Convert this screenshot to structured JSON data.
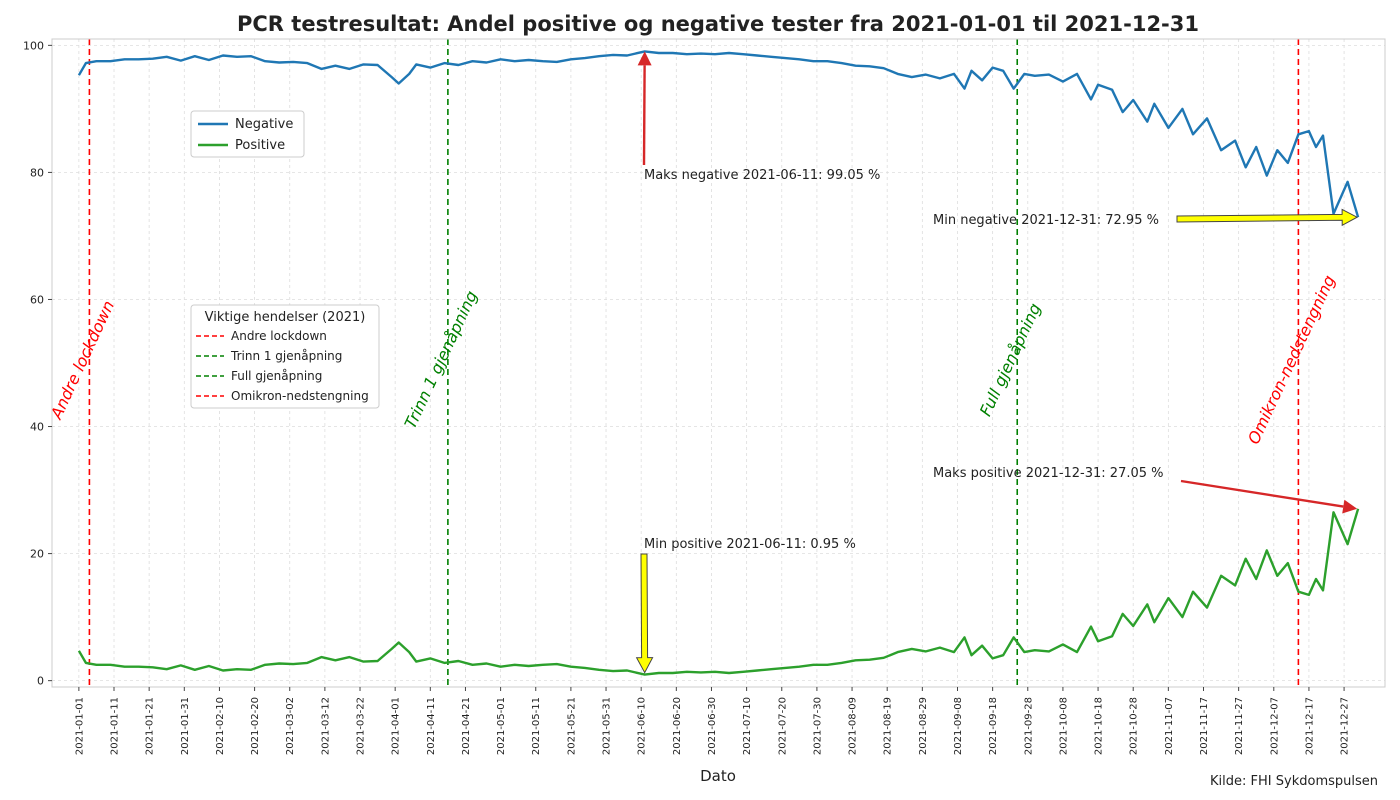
{
  "chart_data": {
    "type": "line",
    "title": "PCR testresultat: Andel positive og negative tester fra 2021-01-01 til 2021-12-31",
    "xlabel": "Dato",
    "ylabel": "",
    "ylim": [
      -1,
      101
    ],
    "yticks": [
      0,
      20,
      40,
      60,
      80,
      100
    ],
    "x_range": [
      "2021-01-01",
      "2021-12-31"
    ],
    "xticks": [
      "2021-01-01",
      "2021-01-11",
      "2021-01-21",
      "2021-01-31",
      "2021-02-10",
      "2021-02-20",
      "2021-03-02",
      "2021-03-12",
      "2021-03-22",
      "2021-04-01",
      "2021-04-11",
      "2021-04-21",
      "2021-05-01",
      "2021-05-11",
      "2021-05-21",
      "2021-05-31",
      "2021-06-10",
      "2021-06-20",
      "2021-06-30",
      "2021-07-10",
      "2021-07-20",
      "2021-07-30",
      "2021-08-09",
      "2021-08-19",
      "2021-08-29",
      "2021-09-08",
      "2021-09-18",
      "2021-09-28",
      "2021-10-08",
      "2021-10-18",
      "2021-10-28",
      "2021-11-07",
      "2021-11-17",
      "2021-11-27",
      "2021-12-07",
      "2021-12-17",
      "2021-12-27"
    ],
    "grid": true,
    "series": [
      {
        "name": "Negative",
        "color": "#1f77b4",
        "points": [
          [
            "2021-01-01",
            95.3
          ],
          [
            "2021-01-03",
            97.2
          ],
          [
            "2021-01-06",
            97.5
          ],
          [
            "2021-01-10",
            97.5
          ],
          [
            "2021-01-14",
            97.8
          ],
          [
            "2021-01-18",
            97.8
          ],
          [
            "2021-01-22",
            97.9
          ],
          [
            "2021-01-26",
            98.2
          ],
          [
            "2021-01-30",
            97.6
          ],
          [
            "2021-02-03",
            98.3
          ],
          [
            "2021-02-07",
            97.7
          ],
          [
            "2021-02-11",
            98.4
          ],
          [
            "2021-02-15",
            98.2
          ],
          [
            "2021-02-19",
            98.3
          ],
          [
            "2021-02-23",
            97.5
          ],
          [
            "2021-02-27",
            97.3
          ],
          [
            "2021-03-03",
            97.4
          ],
          [
            "2021-03-07",
            97.2
          ],
          [
            "2021-03-11",
            96.3
          ],
          [
            "2021-03-15",
            96.8
          ],
          [
            "2021-03-19",
            96.3
          ],
          [
            "2021-03-23",
            97.0
          ],
          [
            "2021-03-27",
            96.9
          ],
          [
            "2021-03-31",
            95.0
          ],
          [
            "2021-04-02",
            94.0
          ],
          [
            "2021-04-05",
            95.5
          ],
          [
            "2021-04-07",
            97.0
          ],
          [
            "2021-04-11",
            96.5
          ],
          [
            "2021-04-15",
            97.2
          ],
          [
            "2021-04-19",
            96.9
          ],
          [
            "2021-04-23",
            97.5
          ],
          [
            "2021-04-27",
            97.3
          ],
          [
            "2021-05-01",
            97.8
          ],
          [
            "2021-05-05",
            97.5
          ],
          [
            "2021-05-09",
            97.7
          ],
          [
            "2021-05-13",
            97.5
          ],
          [
            "2021-05-17",
            97.4
          ],
          [
            "2021-05-21",
            97.8
          ],
          [
            "2021-05-25",
            98.0
          ],
          [
            "2021-05-29",
            98.3
          ],
          [
            "2021-06-02",
            98.5
          ],
          [
            "2021-06-06",
            98.4
          ],
          [
            "2021-06-11",
            99.05
          ],
          [
            "2021-06-15",
            98.8
          ],
          [
            "2021-06-19",
            98.8
          ],
          [
            "2021-06-23",
            98.6
          ],
          [
            "2021-06-27",
            98.7
          ],
          [
            "2021-07-01",
            98.6
          ],
          [
            "2021-07-05",
            98.8
          ],
          [
            "2021-07-09",
            98.6
          ],
          [
            "2021-07-13",
            98.4
          ],
          [
            "2021-07-17",
            98.2
          ],
          [
            "2021-07-21",
            98.0
          ],
          [
            "2021-07-25",
            97.8
          ],
          [
            "2021-07-29",
            97.5
          ],
          [
            "2021-08-02",
            97.5
          ],
          [
            "2021-08-06",
            97.2
          ],
          [
            "2021-08-10",
            96.8
          ],
          [
            "2021-08-14",
            96.7
          ],
          [
            "2021-08-18",
            96.4
          ],
          [
            "2021-08-22",
            95.5
          ],
          [
            "2021-08-26",
            95.0
          ],
          [
            "2021-08-30",
            95.4
          ],
          [
            "2021-09-03",
            94.8
          ],
          [
            "2021-09-07",
            95.5
          ],
          [
            "2021-09-10",
            93.2
          ],
          [
            "2021-09-12",
            96.0
          ],
          [
            "2021-09-15",
            94.5
          ],
          [
            "2021-09-18",
            96.5
          ],
          [
            "2021-09-21",
            96.0
          ],
          [
            "2021-09-24",
            93.2
          ],
          [
            "2021-09-27",
            95.5
          ],
          [
            "2021-09-30",
            95.2
          ],
          [
            "2021-10-04",
            95.4
          ],
          [
            "2021-10-08",
            94.3
          ],
          [
            "2021-10-12",
            95.5
          ],
          [
            "2021-10-16",
            91.5
          ],
          [
            "2021-10-18",
            93.8
          ],
          [
            "2021-10-22",
            93.0
          ],
          [
            "2021-10-25",
            89.5
          ],
          [
            "2021-10-28",
            91.4
          ],
          [
            "2021-11-01",
            88.0
          ],
          [
            "2021-11-03",
            90.8
          ],
          [
            "2021-11-07",
            87.0
          ],
          [
            "2021-11-11",
            90.0
          ],
          [
            "2021-11-14",
            86.0
          ],
          [
            "2021-11-18",
            88.5
          ],
          [
            "2021-11-22",
            83.5
          ],
          [
            "2021-11-26",
            85.0
          ],
          [
            "2021-11-29",
            80.8
          ],
          [
            "2021-12-02",
            84.0
          ],
          [
            "2021-12-05",
            79.5
          ],
          [
            "2021-12-08",
            83.5
          ],
          [
            "2021-12-11",
            81.5
          ],
          [
            "2021-12-14",
            86.0
          ],
          [
            "2021-12-17",
            86.5
          ],
          [
            "2021-12-19",
            84.0
          ],
          [
            "2021-12-21",
            85.8
          ],
          [
            "2021-12-24",
            73.5
          ],
          [
            "2021-12-26",
            76.0
          ],
          [
            "2021-12-28",
            78.5
          ],
          [
            "2021-12-31",
            72.95
          ]
        ]
      },
      {
        "name": "Positive",
        "color": "#2ca02c",
        "points": [
          [
            "2021-01-01",
            4.7
          ],
          [
            "2021-01-03",
            2.8
          ],
          [
            "2021-01-06",
            2.5
          ],
          [
            "2021-01-10",
            2.5
          ],
          [
            "2021-01-14",
            2.2
          ],
          [
            "2021-01-18",
            2.2
          ],
          [
            "2021-01-22",
            2.1
          ],
          [
            "2021-01-26",
            1.8
          ],
          [
            "2021-01-30",
            2.4
          ],
          [
            "2021-02-03",
            1.7
          ],
          [
            "2021-02-07",
            2.3
          ],
          [
            "2021-02-11",
            1.6
          ],
          [
            "2021-02-15",
            1.8
          ],
          [
            "2021-02-19",
            1.7
          ],
          [
            "2021-02-23",
            2.5
          ],
          [
            "2021-02-27",
            2.7
          ],
          [
            "2021-03-03",
            2.6
          ],
          [
            "2021-03-07",
            2.8
          ],
          [
            "2021-03-11",
            3.7
          ],
          [
            "2021-03-15",
            3.2
          ],
          [
            "2021-03-19",
            3.7
          ],
          [
            "2021-03-23",
            3.0
          ],
          [
            "2021-03-27",
            3.1
          ],
          [
            "2021-03-31",
            5.0
          ],
          [
            "2021-04-02",
            6.0
          ],
          [
            "2021-04-05",
            4.5
          ],
          [
            "2021-04-07",
            3.0
          ],
          [
            "2021-04-11",
            3.5
          ],
          [
            "2021-04-15",
            2.8
          ],
          [
            "2021-04-19",
            3.1
          ],
          [
            "2021-04-23",
            2.5
          ],
          [
            "2021-04-27",
            2.7
          ],
          [
            "2021-05-01",
            2.2
          ],
          [
            "2021-05-05",
            2.5
          ],
          [
            "2021-05-09",
            2.3
          ],
          [
            "2021-05-13",
            2.5
          ],
          [
            "2021-05-17",
            2.6
          ],
          [
            "2021-05-21",
            2.2
          ],
          [
            "2021-05-25",
            2.0
          ],
          [
            "2021-05-29",
            1.7
          ],
          [
            "2021-06-02",
            1.5
          ],
          [
            "2021-06-06",
            1.6
          ],
          [
            "2021-06-11",
            0.95
          ],
          [
            "2021-06-15",
            1.2
          ],
          [
            "2021-06-19",
            1.2
          ],
          [
            "2021-06-23",
            1.4
          ],
          [
            "2021-06-27",
            1.3
          ],
          [
            "2021-07-01",
            1.4
          ],
          [
            "2021-07-05",
            1.2
          ],
          [
            "2021-07-09",
            1.4
          ],
          [
            "2021-07-13",
            1.6
          ],
          [
            "2021-07-17",
            1.8
          ],
          [
            "2021-07-21",
            2.0
          ],
          [
            "2021-07-25",
            2.2
          ],
          [
            "2021-07-29",
            2.5
          ],
          [
            "2021-08-02",
            2.5
          ],
          [
            "2021-08-06",
            2.8
          ],
          [
            "2021-08-10",
            3.2
          ],
          [
            "2021-08-14",
            3.3
          ],
          [
            "2021-08-18",
            3.6
          ],
          [
            "2021-08-22",
            4.5
          ],
          [
            "2021-08-26",
            5.0
          ],
          [
            "2021-08-30",
            4.6
          ],
          [
            "2021-09-03",
            5.2
          ],
          [
            "2021-09-07",
            4.5
          ],
          [
            "2021-09-10",
            6.8
          ],
          [
            "2021-09-12",
            4.0
          ],
          [
            "2021-09-15",
            5.5
          ],
          [
            "2021-09-18",
            3.5
          ],
          [
            "2021-09-21",
            4.0
          ],
          [
            "2021-09-24",
            6.8
          ],
          [
            "2021-09-27",
            4.5
          ],
          [
            "2021-09-30",
            4.8
          ],
          [
            "2021-10-04",
            4.6
          ],
          [
            "2021-10-08",
            5.7
          ],
          [
            "2021-10-12",
            4.5
          ],
          [
            "2021-10-16",
            8.5
          ],
          [
            "2021-10-18",
            6.2
          ],
          [
            "2021-10-22",
            7.0
          ],
          [
            "2021-10-25",
            10.5
          ],
          [
            "2021-10-28",
            8.6
          ],
          [
            "2021-11-01",
            12.0
          ],
          [
            "2021-11-03",
            9.2
          ],
          [
            "2021-11-07",
            13.0
          ],
          [
            "2021-11-11",
            10.0
          ],
          [
            "2021-11-14",
            14.0
          ],
          [
            "2021-11-18",
            11.5
          ],
          [
            "2021-11-22",
            16.5
          ],
          [
            "2021-11-26",
            15.0
          ],
          [
            "2021-11-29",
            19.2
          ],
          [
            "2021-12-02",
            16.0
          ],
          [
            "2021-12-05",
            20.5
          ],
          [
            "2021-12-08",
            16.5
          ],
          [
            "2021-12-11",
            18.5
          ],
          [
            "2021-12-14",
            14.0
          ],
          [
            "2021-12-17",
            13.5
          ],
          [
            "2021-12-19",
            16.0
          ],
          [
            "2021-12-21",
            14.2
          ],
          [
            "2021-12-24",
            26.5
          ],
          [
            "2021-12-26",
            24.0
          ],
          [
            "2021-12-28",
            21.5
          ],
          [
            "2021-12-31",
            27.05
          ]
        ]
      }
    ],
    "legend": {
      "placement": "upper-left",
      "entries": [
        {
          "name": "Negative",
          "color": "#1f77b4"
        },
        {
          "name": "Positive",
          "color": "#2ca02c"
        }
      ]
    },
    "events_legend": {
      "title": "Viktige hendelser (2021)",
      "placement": "center-left"
    },
    "events": [
      {
        "date": "2021-01-04",
        "label": "Andre lockdown",
        "color": "#ff0000"
      },
      {
        "date": "2021-04-16",
        "label": "Trinn 1 gjenåpning",
        "color": "#008000"
      },
      {
        "date": "2021-09-25",
        "label": "Full gjenåpning",
        "color": "#008000"
      },
      {
        "date": "2021-12-14",
        "label": "Omikron-nedstengning",
        "color": "#ff0000"
      }
    ],
    "annotations": [
      {
        "text": "Maks negative 2021-06-11: 99.05 %",
        "target_date": "2021-06-11",
        "target_value": 99.05,
        "arrow_color": "#d62728",
        "arrow_style": "thin"
      },
      {
        "text": "Min negative 2021-12-31: 72.95 %",
        "target_date": "2021-12-31",
        "target_value": 72.95,
        "arrow_color": "#ffff00",
        "arrow_style": "fat"
      },
      {
        "text": "Min positive 2021-06-11: 0.95 %",
        "target_date": "2021-06-11",
        "target_value": 0.95,
        "arrow_color": "#ffff00",
        "arrow_style": "fat"
      },
      {
        "text": "Maks positive 2021-12-31: 27.05 %",
        "target_date": "2021-12-31",
        "target_value": 27.05,
        "arrow_color": "#d62728",
        "arrow_style": "thin"
      }
    ],
    "source": "Kilde: FHI Sykdomspulsen"
  }
}
